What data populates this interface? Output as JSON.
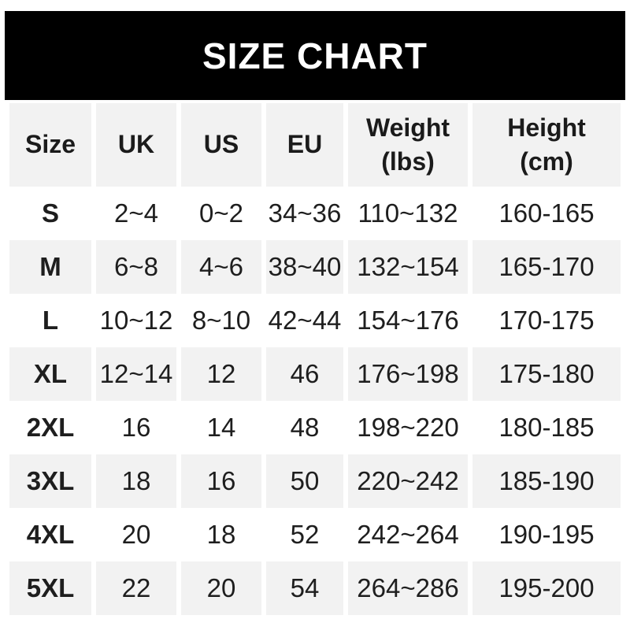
{
  "header": {
    "title": "SIZE CHART"
  },
  "colors": {
    "title_bar_bg": "#000000",
    "title_text": "#ffffff",
    "row_alt_bg": "#f2f2f2",
    "body_text": "#1e1e1e"
  },
  "chart_data": {
    "type": "table",
    "title": "SIZE CHART",
    "columns": [
      "Size",
      "UK",
      "US",
      "EU",
      "Weight\n(lbs)",
      "Height\n(cm)"
    ],
    "rows": [
      [
        "S",
        "2~4",
        "0~2",
        "34~36",
        "110~132",
        "160-165"
      ],
      [
        "M",
        "6~8",
        "4~6",
        "38~40",
        "132~154",
        "165-170"
      ],
      [
        "L",
        "10~12",
        "8~10",
        "42~44",
        "154~176",
        "170-175"
      ],
      [
        "XL",
        "12~14",
        "12",
        "46",
        "176~198",
        "175-180"
      ],
      [
        "2XL",
        "16",
        "14",
        "48",
        "198~220",
        "180-185"
      ],
      [
        "3XL",
        "18",
        "16",
        "50",
        "220~242",
        "185-190"
      ],
      [
        "4XL",
        "20",
        "18",
        "52",
        "242~264",
        "190-195"
      ],
      [
        "5XL",
        "22",
        "20",
        "54",
        "264~286",
        "195-200"
      ]
    ],
    "layout_hints": {
      "row_striping": "even rows shaded #f2f2f2 with white column gutters",
      "first_column_bold": true,
      "weight_separator": "~",
      "height_separator": "-"
    }
  }
}
